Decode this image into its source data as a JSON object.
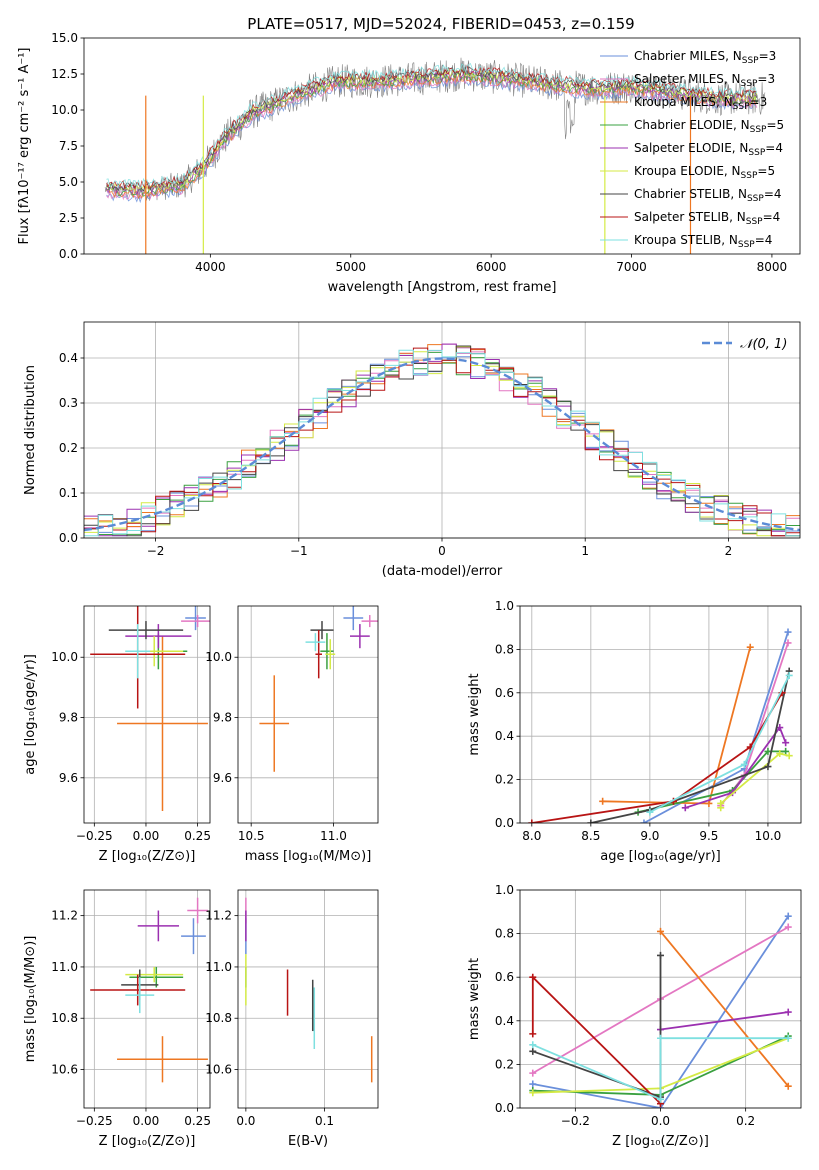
{
  "figure": {
    "title": "PLATE=0517, MJD=52024, FIBERID=0453, z=0.159",
    "model_colors": [
      "#6a8fdb",
      "#e377c2",
      "#ee7722",
      "#3aa040",
      "#9b30b0",
      "#d4ea45",
      "#444444",
      "#b81414",
      "#7ee0e0"
    ]
  },
  "chart_data": [
    {
      "id": "spectrum",
      "type": "line",
      "title": "PLATE=0517, MJD=52024, FIBERID=0453, z=0.159",
      "xlabel": "wavelength [Angstrom, rest frame]",
      "ylabel": "Flux [fλ10⁻¹⁷ erg cm⁻² s⁻¹ A⁻¹]",
      "xlim": [
        3100,
        8200
      ],
      "ylim": [
        0,
        15
      ],
      "xticks": [
        "4000",
        "5000",
        "6000",
        "7000",
        "8000"
      ],
      "yticks": [
        "0.0",
        "2.5",
        "5.0",
        "7.5",
        "10.0",
        "12.5",
        "15.0"
      ],
      "continuum": {
        "x": [
          3250,
          3500,
          3800,
          3950,
          4100,
          4300,
          4600,
          4900,
          5200,
          5500,
          5800,
          6100,
          6400,
          6700,
          7000,
          7300,
          7600,
          7900
        ],
        "y": [
          4.5,
          4.4,
          4.8,
          6.0,
          8.0,
          9.8,
          11.0,
          12.0,
          12.0,
          12.2,
          12.5,
          12.2,
          11.8,
          11.5,
          11.6,
          11.2,
          10.8,
          10.8
        ]
      },
      "legend": [
        "Chabrier MILES, N_SSP=3",
        "Salpeter MILES, N_SSP=3",
        "Kroupa MILES, N_SSP=3",
        "Chabrier ELODIE, N_SSP=5",
        "Salpeter ELODIE, N_SSP=4",
        "Kroupa ELODIE, N_SSP=5",
        "Chabrier STELIB, N_SSP=4",
        "Salpeter STELIB, N_SSP=4",
        "Kroupa STELIB, N_SSP=4"
      ],
      "legend_position": "right",
      "grid": false
    },
    {
      "id": "residuals",
      "type": "histogram",
      "xlabel": "(data-model)/error",
      "ylabel": "Normed distribution",
      "xlim": [
        -2.5,
        2.5
      ],
      "ylim": [
        0,
        0.48
      ],
      "xticks": [
        "−2",
        "−1",
        "0",
        "1",
        "2"
      ],
      "yticks": [
        "0.0",
        "0.1",
        "0.2",
        "0.3",
        "0.4"
      ],
      "reference_curve": "𝒩(0, 1)",
      "legend_position": "top-right",
      "grid": true
    },
    {
      "id": "age_vs_Z",
      "type": "errorbar",
      "xlabel": "Z [log₁₀(Z/Z⊙)]",
      "ylabel": "age  [log₁₀(age/yr)]",
      "xlim": [
        -0.3,
        0.31
      ],
      "ylim": [
        9.45,
        10.17
      ],
      "xticks": [
        "−0.25",
        "0.00",
        "0.25"
      ],
      "yticks": [
        "9.6",
        "9.8",
        "10.0"
      ],
      "points": [
        {
          "model": 0,
          "x": 0.24,
          "xerr": 0.05,
          "y": 10.13,
          "yerr": 0.04
        },
        {
          "model": 1,
          "x": 0.25,
          "xerr": 0.08,
          "y": 10.12,
          "yerr": 0.02
        },
        {
          "model": 2,
          "x": 0.08,
          "xerr": 0.22,
          "y": 9.78,
          "yerr": 0.29
        },
        {
          "model": 3,
          "x": 0.06,
          "xerr": 0.14,
          "y": 10.02,
          "yerr": 0.06
        },
        {
          "model": 4,
          "x": 0.06,
          "xerr": 0.16,
          "y": 10.07,
          "yerr": 0.04
        },
        {
          "model": 5,
          "x": 0.04,
          "xerr": 0.14,
          "y": 10.02,
          "yerr": 0.05
        },
        {
          "model": 6,
          "x": 0.0,
          "xerr": 0.18,
          "y": 10.09,
          "yerr": 0.03
        },
        {
          "model": 7,
          "x": -0.04,
          "xerr": 0.23,
          "y": 10.01,
          "yerr": 0.18
        },
        {
          "model": 8,
          "x": -0.04,
          "xerr": 0.06,
          "y": 10.02,
          "yerr": 0.09
        }
      ],
      "grid": true
    },
    {
      "id": "age_vs_mass",
      "type": "errorbar",
      "xlabel": "mass [log₁₀(M/M⊙)]",
      "ylabel": "",
      "xlim": [
        10.42,
        11.27
      ],
      "ylim": [
        9.45,
        10.17
      ],
      "xticks": [
        "10.5",
        "11.0"
      ],
      "yticks": [
        "9.6",
        "9.8",
        "10.0"
      ],
      "points": [
        {
          "model": 0,
          "x": 11.12,
          "xerr": 0.06,
          "y": 10.13,
          "yerr": 0.04
        },
        {
          "model": 1,
          "x": 11.22,
          "xerr": 0.05,
          "y": 10.12,
          "yerr": 0.02
        },
        {
          "model": 2,
          "x": 10.64,
          "xerr": 0.09,
          "y": 9.78,
          "yerr": 0.16
        },
        {
          "model": 3,
          "x": 10.96,
          "xerr": 0.04,
          "y": 10.02,
          "yerr": 0.06
        },
        {
          "model": 4,
          "x": 11.16,
          "xerr": 0.06,
          "y": 10.07,
          "yerr": 0.04
        },
        {
          "model": 5,
          "x": 10.98,
          "xerr": 0.03,
          "y": 10.01,
          "yerr": 0.05
        },
        {
          "model": 6,
          "x": 10.93,
          "xerr": 0.07,
          "y": 10.09,
          "yerr": 0.03
        },
        {
          "model": 7,
          "x": 10.91,
          "xerr": 0.02,
          "y": 10.01,
          "yerr": 0.08
        },
        {
          "model": 8,
          "x": 10.89,
          "xerr": 0.06,
          "y": 10.05,
          "yerr": 0.03
        }
      ],
      "grid": true
    },
    {
      "id": "mass_weight_vs_age",
      "type": "line",
      "xlabel": "age  [log₁₀(age/yr)]",
      "ylabel": "mass weight",
      "xlim": [
        7.9,
        10.28
      ],
      "ylim": [
        0,
        1.0
      ],
      "xticks": [
        "8.0",
        "8.5",
        "9.0",
        "9.5",
        "10.0"
      ],
      "yticks": [
        "0.0",
        "0.2",
        "0.4",
        "0.6",
        "0.8",
        "1.0"
      ],
      "series": [
        {
          "model": 0,
          "x": [
            8.95,
            9.8,
            10.17
          ],
          "y": [
            0.0,
            0.25,
            0.88
          ]
        },
        {
          "model": 1,
          "x": [
            9.6,
            9.8,
            10.17
          ],
          "y": [
            0.08,
            0.22,
            0.83
          ]
        },
        {
          "model": 2,
          "x": [
            8.6,
            9.5,
            9.85
          ],
          "y": [
            0.1,
            0.09,
            0.81
          ]
        },
        {
          "model": 3,
          "x": [
            8.9,
            9.7,
            10.0,
            10.15
          ],
          "y": [
            0.05,
            0.15,
            0.33,
            0.33
          ]
        },
        {
          "model": 4,
          "x": [
            9.3,
            9.7,
            10.1,
            10.15
          ],
          "y": [
            0.07,
            0.14,
            0.44,
            0.37
          ]
        },
        {
          "model": 5,
          "x": [
            9.6,
            9.6,
            10.1,
            10.18
          ],
          "y": [
            0.07,
            0.09,
            0.32,
            0.31
          ]
        },
        {
          "model": 6,
          "x": [
            8.5,
            9.0,
            10.0,
            10.18
          ],
          "y": [
            0.0,
            0.06,
            0.26,
            0.7
          ]
        },
        {
          "model": 7,
          "x": [
            8.0,
            9.2,
            9.85,
            10.12
          ],
          "y": [
            0.0,
            0.1,
            0.35,
            0.6
          ]
        },
        {
          "model": 8,
          "x": [
            9.0,
            9.8,
            10.18
          ],
          "y": [
            0.05,
            0.27,
            0.68
          ]
        }
      ],
      "grid": true
    },
    {
      "id": "mass_vs_Z",
      "type": "errorbar",
      "xlabel": "Z [log₁₀(Z/Z⊙)]",
      "ylabel": "mass [log₁₀(M/M⊙)]",
      "xlim": [
        -0.3,
        0.31
      ],
      "ylim": [
        10.45,
        11.3
      ],
      "xticks": [
        "−0.25",
        "0.00",
        "0.25"
      ],
      "yticks": [
        "10.6",
        "10.8",
        "11.0",
        "11.2"
      ],
      "points": [
        {
          "model": 0,
          "x": 0.23,
          "xerr": 0.06,
          "y": 11.12,
          "yerr": 0.07
        },
        {
          "model": 1,
          "x": 0.25,
          "xerr": 0.05,
          "y": 11.22,
          "yerr": 0.05
        },
        {
          "model": 2,
          "x": 0.08,
          "xerr": 0.22,
          "y": 10.64,
          "yerr": 0.09
        },
        {
          "model": 3,
          "x": 0.05,
          "xerr": 0.13,
          "y": 10.96,
          "yerr": 0.04
        },
        {
          "model": 4,
          "x": 0.06,
          "xerr": 0.1,
          "y": 11.16,
          "yerr": 0.06
        },
        {
          "model": 5,
          "x": 0.04,
          "xerr": 0.14,
          "y": 10.97,
          "yerr": 0.03
        },
        {
          "model": 6,
          "x": -0.03,
          "xerr": 0.09,
          "y": 10.93,
          "yerr": 0.06
        },
        {
          "model": 7,
          "x": -0.04,
          "xerr": 0.23,
          "y": 10.91,
          "yerr": 0.06
        },
        {
          "model": 8,
          "x": -0.03,
          "xerr": 0.07,
          "y": 10.89,
          "yerr": 0.07
        }
      ],
      "grid": true
    },
    {
      "id": "mass_vs_ebv",
      "type": "errorbar",
      "xlabel": "E(B-V)",
      "ylabel": "",
      "xlim": [
        -0.01,
        0.168
      ],
      "ylim": [
        10.45,
        11.3
      ],
      "xticks": [
        "0.0",
        "0.1"
      ],
      "yticks": [
        "10.6",
        "10.8",
        "11.0",
        "11.2"
      ],
      "points": [
        {
          "model": 0,
          "x": 0.0,
          "xerr": 0.0,
          "y": 11.12,
          "yerr": 0.07
        },
        {
          "model": 1,
          "x": 0.0,
          "xerr": 0.0,
          "y": 11.22,
          "yerr": 0.05
        },
        {
          "model": 2,
          "x": 0.16,
          "xerr": 0.0,
          "y": 10.64,
          "yerr": 0.09
        },
        {
          "model": 3,
          "x": 0.0,
          "xerr": 0.0,
          "y": 10.96,
          "yerr": 0.04
        },
        {
          "model": 4,
          "x": 0.0,
          "xerr": 0.0,
          "y": 11.16,
          "yerr": 0.06
        },
        {
          "model": 5,
          "x": 0.0,
          "xerr": 0.0,
          "y": 10.95,
          "yerr": 0.1
        },
        {
          "model": 6,
          "x": 0.085,
          "xerr": 0.0,
          "y": 10.85,
          "yerr": 0.1
        },
        {
          "model": 7,
          "x": 0.053,
          "xerr": 0.0,
          "y": 10.9,
          "yerr": 0.09
        },
        {
          "model": 8,
          "x": 0.087,
          "xerr": 0.0,
          "y": 10.8,
          "yerr": 0.12
        }
      ],
      "grid": true
    },
    {
      "id": "mass_weight_vs_Z",
      "type": "line",
      "xlabel": "Z [log₁₀(Z/Z⊙)]",
      "ylabel": "mass weight",
      "xlim": [
        -0.33,
        0.33
      ],
      "ylim": [
        0,
        1.0
      ],
      "xticks": [
        "−0.2",
        "0.0",
        "0.2"
      ],
      "yticks": [
        "0.0",
        "0.2",
        "0.4",
        "0.6",
        "0.8",
        "1.0"
      ],
      "series": [
        {
          "model": 0,
          "x": [
            -0.3,
            0.0,
            0.3
          ],
          "y": [
            0.11,
            0.0,
            0.88
          ]
        },
        {
          "model": 1,
          "x": [
            -0.3,
            0.0,
            0.3
          ],
          "y": [
            0.16,
            0.5,
            0.83
          ]
        },
        {
          "model": 2,
          "x": [
            0.0,
            0.3
          ],
          "y": [
            0.81,
            0.1
          ]
        },
        {
          "model": 3,
          "x": [
            -0.3,
            0.0,
            0.3
          ],
          "y": [
            0.08,
            0.06,
            0.33
          ]
        },
        {
          "model": 4,
          "x": [
            0.0,
            0.3
          ],
          "y": [
            0.36,
            0.44
          ]
        },
        {
          "model": 5,
          "x": [
            -0.3,
            0.0,
            0.3
          ],
          "y": [
            0.07,
            0.09,
            0.32
          ]
        },
        {
          "model": 6,
          "x": [
            -0.3,
            0.0,
            0.0
          ],
          "y": [
            0.26,
            0.05,
            0.7
          ]
        },
        {
          "model": 7,
          "x": [
            -0.3,
            -0.3,
            0.0
          ],
          "y": [
            0.34,
            0.6,
            0.02
          ]
        },
        {
          "model": 8,
          "x": [
            -0.3,
            0.0,
            0.0,
            0.3
          ],
          "y": [
            0.29,
            0.04,
            0.32,
            0.32
          ]
        }
      ],
      "grid": true
    }
  ]
}
